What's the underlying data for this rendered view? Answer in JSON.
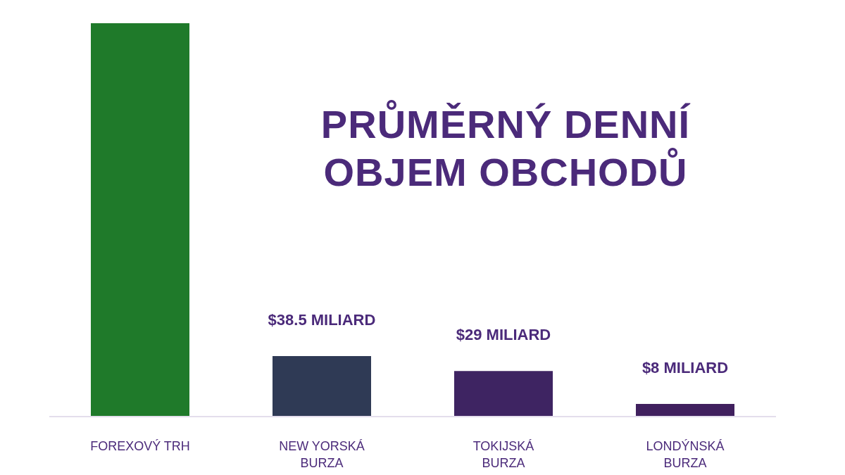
{
  "chart_data": {
    "type": "bar",
    "title": "PRŮMĚRNÝ DENNÍ OBJEM OBCHODŮ",
    "categories": [
      "FOREXOVÝ TRH",
      "NEW YORSKÁ BURZA",
      "TOKIJSKÁ BURZA",
      "LONDÝNSKÁ BURZA"
    ],
    "values": [
      250,
      38.5,
      29,
      8
    ],
    "colors": [
      "#1f7a2a",
      "#2f3a55",
      "#3e2462",
      "#40205e"
    ],
    "value_labels": [
      null,
      "$38.5 MILIARD",
      "$29 MILIARD",
      "$8 MILIARD"
    ],
    "grid": false
  }
}
